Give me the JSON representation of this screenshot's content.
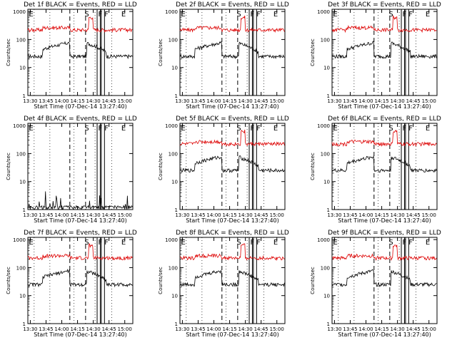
{
  "time_ticks": [
    "13:30",
    "13:45",
    "14:00",
    "14:15",
    "14:30",
    "14:45",
    "15:00"
  ],
  "y_ticks": [
    "1",
    "10",
    "100",
    "1000"
  ],
  "ylabel": "Counts/sec",
  "xlabel": "Start Time (07-Dec-14 13:27:40)",
  "marker_letters": {
    "E": "E",
    "S": "S",
    "F": "F"
  },
  "colors": {
    "events": "#000000",
    "lld": "#dd0000",
    "axes": "#000000"
  },
  "chart_data": [
    {
      "type": "line",
      "title": "Det 1f BLACK = Events, RED = LLD",
      "series": [
        {
          "name": "BLACK = Events",
          "level": "mid"
        },
        {
          "name": "RED = LLD",
          "level": "high"
        }
      ],
      "x_range": [
        "13:27:40",
        "15:07:40"
      ],
      "ylim": [
        1,
        1200
      ],
      "yscale": "log",
      "xlabel": "Start Time (07-Dec-14 13:27:40)",
      "ylabel": "Counts/sec",
      "panel": 0
    },
    {
      "type": "line",
      "title": "Det 2f BLACK = Events, RED = LLD",
      "series": [
        {
          "name": "BLACK = Events",
          "level": "mid"
        },
        {
          "name": "RED = LLD",
          "level": "high"
        }
      ],
      "x_range": [
        "13:27:40",
        "15:07:40"
      ],
      "ylim": [
        1,
        1200
      ],
      "yscale": "log",
      "xlabel": "Start Time (07-Dec-14 13:27:40)",
      "ylabel": "Counts/sec",
      "panel": 1
    },
    {
      "type": "line",
      "title": "Det 3f BLACK = Events, RED = LLD",
      "series": [
        {
          "name": "BLACK = Events",
          "level": "mid"
        },
        {
          "name": "RED = LLD",
          "level": "high"
        }
      ],
      "x_range": [
        "13:27:40",
        "15:07:40"
      ],
      "ylim": [
        1,
        1200
      ],
      "yscale": "log",
      "xlabel": "Start Time (07-Dec-14 13:27:40)",
      "ylabel": "Counts/sec",
      "panel": 2
    },
    {
      "type": "line",
      "title": "Det 4f BLACK = Events, RED = LLD",
      "series": [
        {
          "name": "BLACK = Events",
          "level": "low"
        }
      ],
      "x_range": [
        "13:27:40",
        "15:07:40"
      ],
      "ylim": [
        1,
        1200
      ],
      "yscale": "log",
      "xlabel": "Start Time (07-Dec-14 13:27:40)",
      "ylabel": "Counts/sec",
      "panel": 3
    },
    {
      "type": "line",
      "title": "Det 5f BLACK = Events, RED = LLD",
      "series": [
        {
          "name": "BLACK = Events",
          "level": "mid"
        },
        {
          "name": "RED = LLD",
          "level": "high"
        }
      ],
      "x_range": [
        "13:27:40",
        "15:07:40"
      ],
      "ylim": [
        1,
        1200
      ],
      "yscale": "log",
      "xlabel": "Start Time (07-Dec-14 13:27:40)",
      "ylabel": "Counts/sec",
      "panel": 4
    },
    {
      "type": "line",
      "title": "Det 6f BLACK = Events, RED = LLD",
      "series": [
        {
          "name": "BLACK = Events",
          "level": "mid"
        },
        {
          "name": "RED = LLD",
          "level": "high"
        }
      ],
      "x_range": [
        "13:27:40",
        "15:07:40"
      ],
      "ylim": [
        1,
        1200
      ],
      "yscale": "log",
      "xlabel": "Start Time (07-Dec-14 13:27:40)",
      "ylabel": "Counts/sec",
      "panel": 5
    },
    {
      "type": "line",
      "title": "Det 7f BLACK = Events, RED = LLD",
      "series": [
        {
          "name": "BLACK = Events",
          "level": "mid"
        },
        {
          "name": "RED = LLD",
          "level": "high"
        }
      ],
      "x_range": [
        "13:27:40",
        "15:07:40"
      ],
      "ylim": [
        1,
        1200
      ],
      "yscale": "log",
      "xlabel": "Start Time (07-Dec-14 13:27:40)",
      "ylabel": "Counts/sec",
      "panel": 6
    },
    {
      "type": "line",
      "title": "Det 8f BLACK = Events, RED = LLD",
      "series": [
        {
          "name": "BLACK = Events",
          "level": "mid"
        },
        {
          "name": "RED = LLD",
          "level": "high"
        }
      ],
      "x_range": [
        "13:27:40",
        "15:07:40"
      ],
      "ylim": [
        1,
        1200
      ],
      "yscale": "log",
      "xlabel": "Start Time (07-Dec-14 13:27:40)",
      "ylabel": "Counts/sec",
      "panel": 7
    },
    {
      "type": "line",
      "title": "Det 9f BLACK = Events, RED = LLD",
      "series": [
        {
          "name": "BLACK = Events",
          "level": "mid"
        },
        {
          "name": "RED = LLD",
          "level": "high"
        }
      ],
      "x_range": [
        "13:27:40",
        "15:07:40"
      ],
      "ylim": [
        1,
        1200
      ],
      "yscale": "log",
      "xlabel": "Start Time (07-Dec-14 13:27:40)",
      "ylabel": "Counts/sec",
      "panel": 8
    }
  ]
}
